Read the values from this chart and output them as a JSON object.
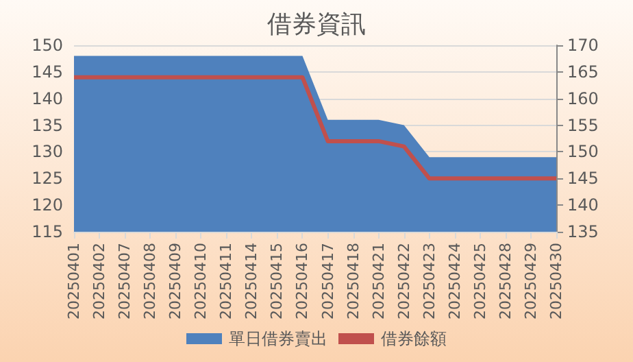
{
  "chart_data": {
    "type": "area",
    "title": "借券資訊",
    "categories": [
      "20250401",
      "20250402",
      "20250407",
      "20250408",
      "20250409",
      "20250410",
      "20250411",
      "20250414",
      "20250415",
      "20250416",
      "20250417",
      "20250418",
      "20250421",
      "20250422",
      "20250423",
      "20250424",
      "20250425",
      "20250428",
      "20250429",
      "20250430"
    ],
    "series": [
      {
        "name": "單日借券賣出",
        "type": "area",
        "color": "#4f81bd",
        "values": [
          148,
          148,
          148,
          148,
          148,
          148,
          148,
          148,
          148,
          148,
          136,
          136,
          136,
          135,
          129,
          129,
          129,
          129,
          129,
          129
        ]
      },
      {
        "name": "借券餘額",
        "type": "line",
        "axis": "y2",
        "color": "#c0504d",
        "values": [
          164,
          164,
          164,
          164,
          164,
          164,
          164,
          164,
          164,
          164,
          152,
          152,
          152,
          151,
          145,
          145,
          145,
          145,
          145,
          145
        ]
      }
    ],
    "ylim": [
      115,
      150
    ],
    "yticks": [
      115,
      120,
      125,
      130,
      135,
      140,
      145,
      150
    ],
    "y2lim": [
      135,
      170
    ],
    "y2ticks": [
      135,
      140,
      145,
      150,
      155,
      160,
      165,
      170
    ],
    "grid": "y",
    "legend": "bottom",
    "marker": "none",
    "line_style": "solid"
  }
}
